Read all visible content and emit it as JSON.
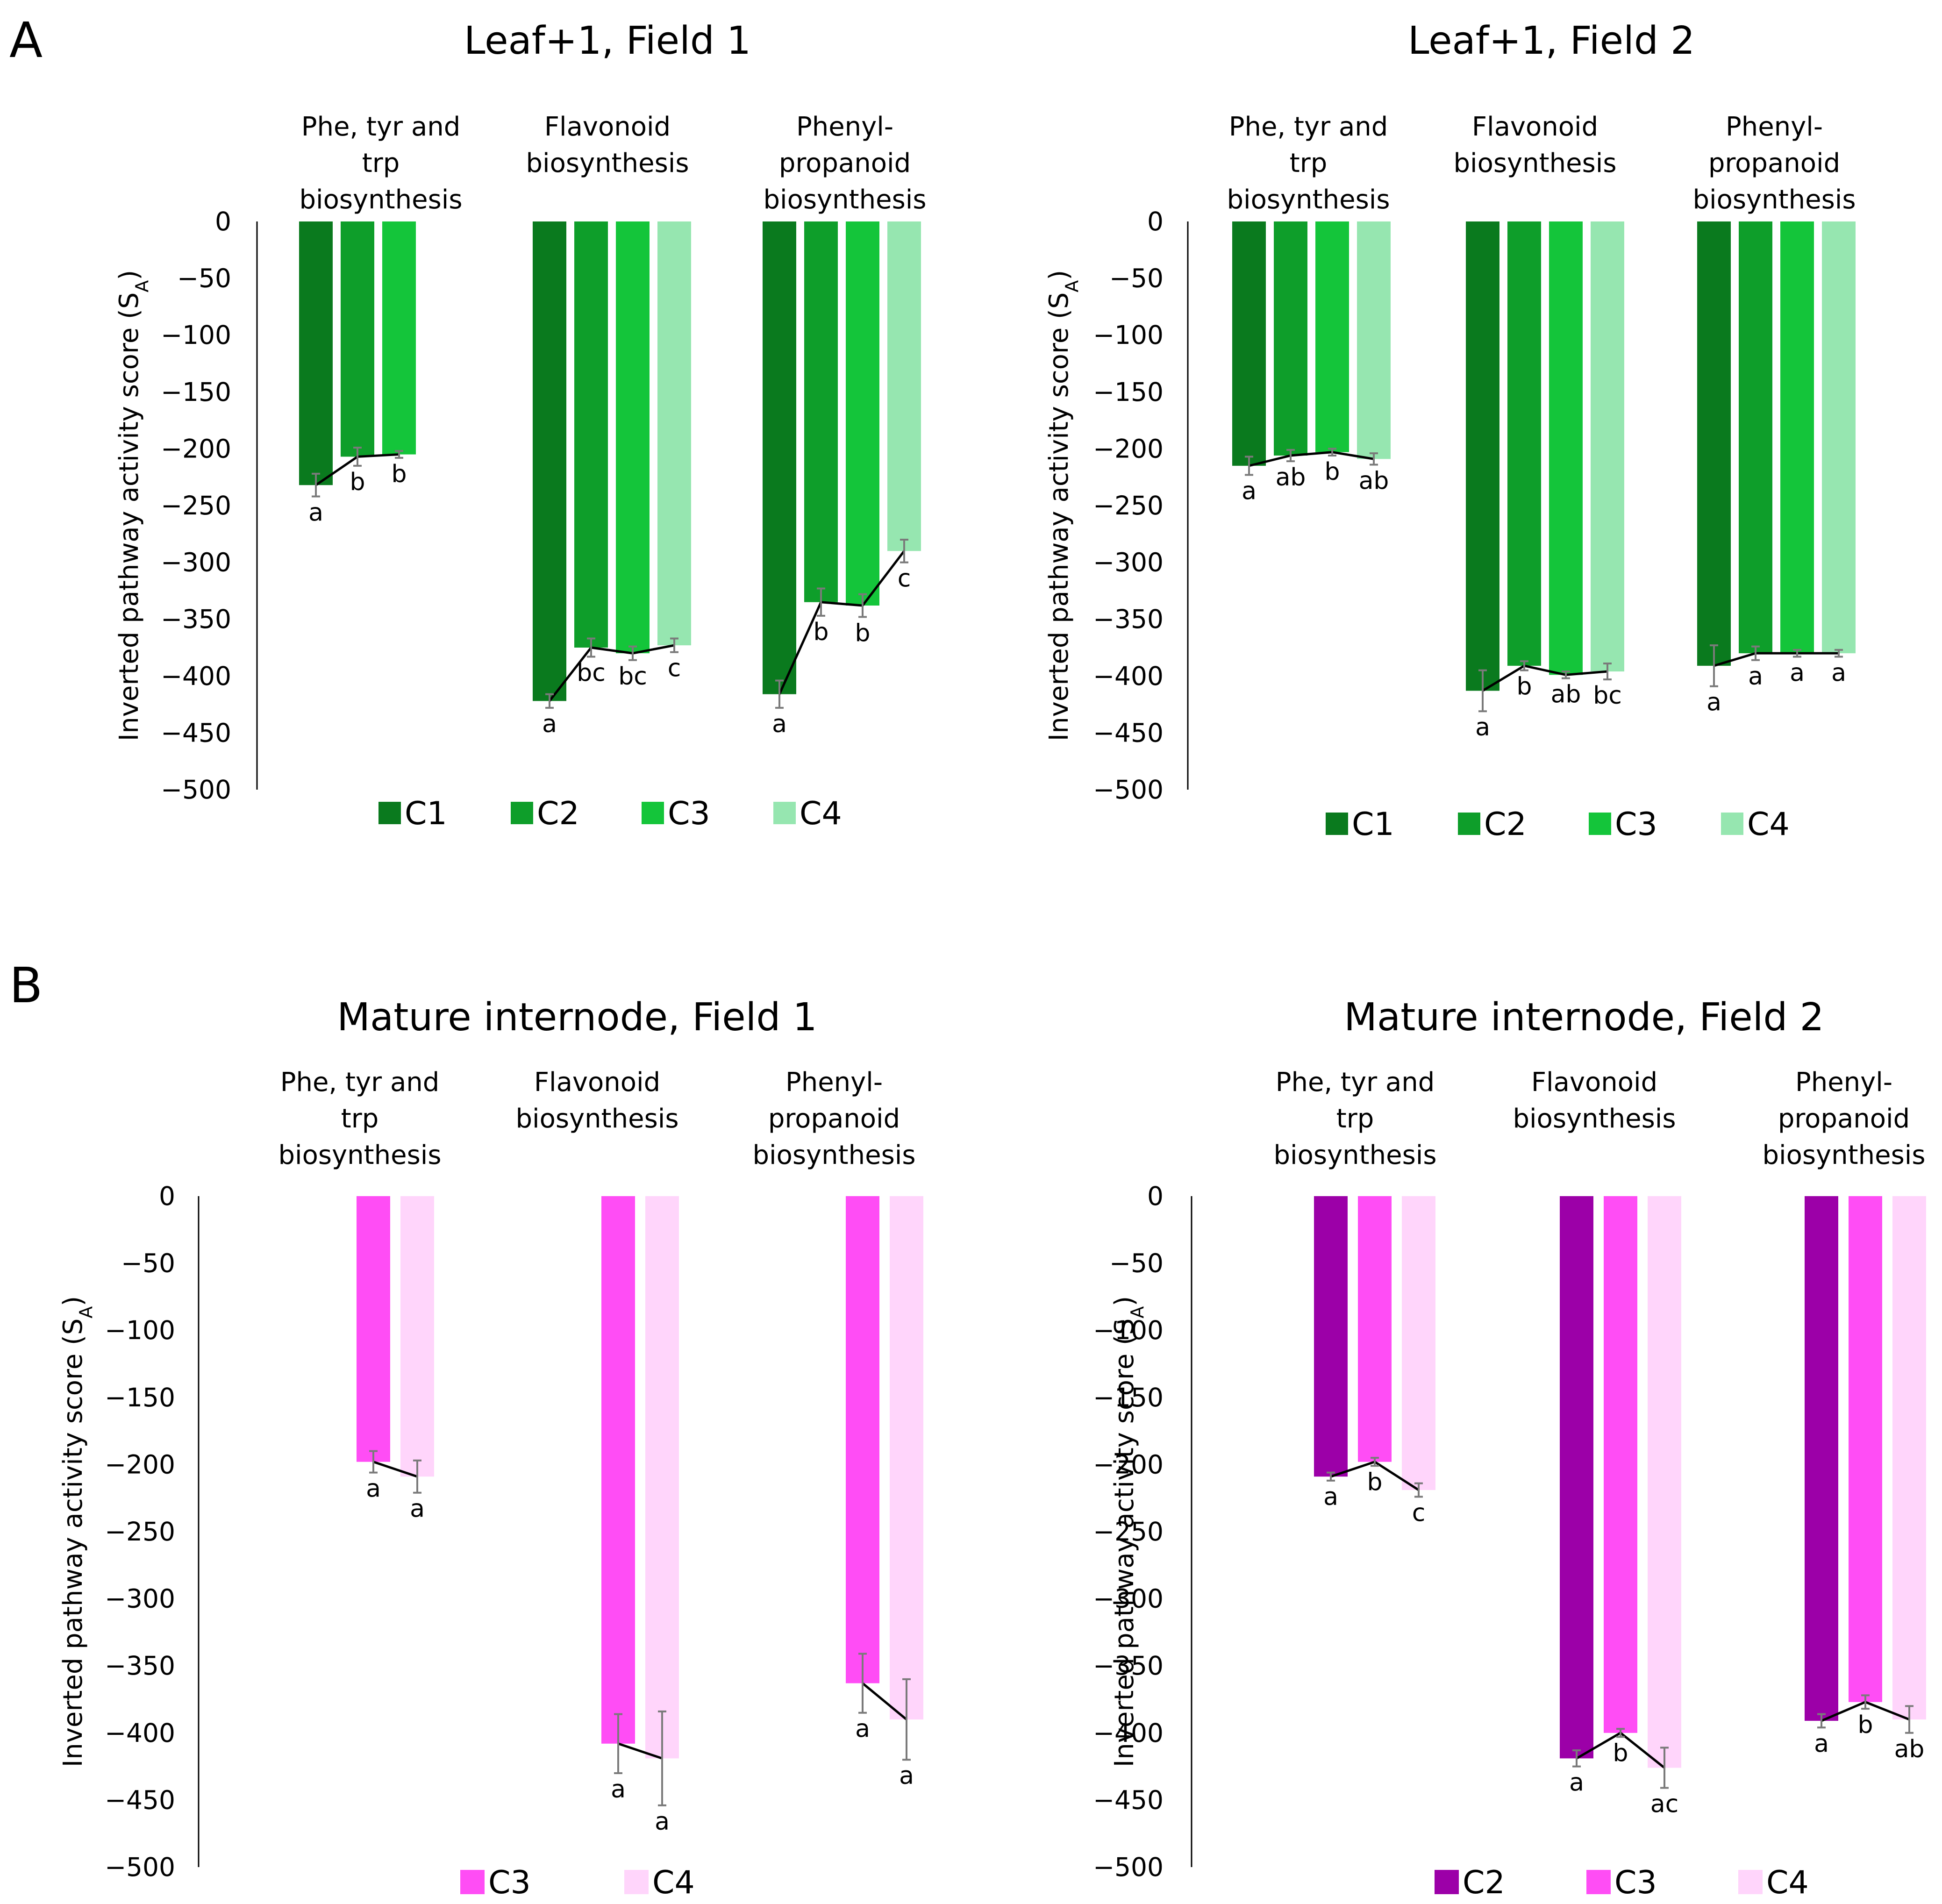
{
  "panel_letters": [
    "A",
    "B"
  ],
  "chart_data": [
    {
      "type": "bar",
      "panel": "A",
      "title": "Leaf+1, Field 1",
      "ylabel": "Inverted pathway activity score (S",
      "ylabel_sub": "A",
      "ylabel_close": ")",
      "ylim": [
        -500,
        0
      ],
      "yticks": [
        0,
        -50,
        -100,
        -150,
        -200,
        -250,
        -300,
        -350,
        -400,
        -450,
        -500
      ],
      "ytick_labels": [
        "0",
        "-50",
        "-100",
        "-150",
        "-200",
        "-250",
        "-300",
        "-350",
        "-400",
        "-450",
        "-500"
      ],
      "legend": [
        "C1",
        "C2",
        "C3",
        "C4"
      ],
      "colors": {
        "C1": "#0a7a1e",
        "C2": "#0e9e2a",
        "C3": "#14c53a",
        "C4": "#96e6b0"
      },
      "groups": [
        {
          "label": [
            "Phe, tyr and",
            "trp",
            "biosynthesis"
          ],
          "series": [
            "C1",
            "C2",
            "C3"
          ],
          "values": [
            -232,
            -207,
            -205
          ],
          "errors": [
            10,
            8,
            3
          ],
          "sig": [
            "a",
            "b",
            "b"
          ]
        },
        {
          "label": [
            "Flavonoid",
            "biosynthesis"
          ],
          "series": [
            "C1",
            "C2",
            "C3",
            "C4"
          ],
          "values": [
            -422,
            -375,
            -380,
            -373
          ],
          "errors": [
            6,
            8,
            6,
            6
          ],
          "sig": [
            "a",
            "bc",
            "bc",
            "c"
          ]
        },
        {
          "label": [
            "Phenyl-",
            "propanoid",
            "biosynthesis"
          ],
          "series": [
            "C1",
            "C2",
            "C3",
            "C4"
          ],
          "values": [
            -416,
            -335,
            -338,
            -290
          ],
          "errors": [
            12,
            12,
            10,
            10
          ],
          "sig": [
            "a",
            "b",
            "b",
            "c"
          ]
        }
      ]
    },
    {
      "type": "bar",
      "panel": "A",
      "title": "Leaf+1, Field 2",
      "ylabel": "Inverted pathway activity score (S",
      "ylabel_sub": "A",
      "ylabel_close": ")",
      "ylim": [
        -500,
        0
      ],
      "yticks": [
        0,
        -50,
        -100,
        -150,
        -200,
        -250,
        -300,
        -350,
        -400,
        -450,
        -500
      ],
      "ytick_labels": [
        "0",
        "-50",
        "-100",
        "-150",
        "-200",
        "-250",
        "-300",
        "-350",
        "-400",
        "-450",
        "-500"
      ],
      "legend": [
        "C1",
        "C2",
        "C3",
        "C4"
      ],
      "colors": {
        "C1": "#0a7a1e",
        "C2": "#0e9e2a",
        "C3": "#14c53a",
        "C4": "#96e6b0"
      },
      "groups": [
        {
          "label": [
            "Phe, tyr and",
            "trp",
            "biosynthesis"
          ],
          "series": [
            "C1",
            "C2",
            "C3",
            "C4"
          ],
          "values": [
            -215,
            -206,
            -203,
            -209
          ],
          "errors": [
            8,
            5,
            3,
            5
          ],
          "sig": [
            "a",
            "ab",
            "b",
            "ab"
          ]
        },
        {
          "label": [
            "Flavonoid",
            "biosynthesis"
          ],
          "series": [
            "C1",
            "C2",
            "C3",
            "C4"
          ],
          "values": [
            -413,
            -391,
            -399,
            -396
          ],
          "errors": [
            18,
            4,
            3,
            7
          ],
          "sig": [
            "a",
            "b",
            "ab",
            "bc"
          ]
        },
        {
          "label": [
            "Phenyl-",
            "propanoid",
            "biosynthesis"
          ],
          "series": [
            "C1",
            "C2",
            "C3",
            "C4"
          ],
          "values": [
            -391,
            -380,
            -380,
            -380
          ],
          "errors": [
            18,
            6,
            3,
            3
          ],
          "sig": [
            "a",
            "a",
            "a",
            "a"
          ]
        }
      ]
    },
    {
      "type": "bar",
      "panel": "B",
      "title": "Mature internode, Field 1",
      "ylabel": "Inverted pathway activity score (S",
      "ylabel_sub": "A",
      "ylabel_close": ")",
      "ylim": [
        -500,
        0
      ],
      "yticks": [
        0,
        -50,
        -100,
        -150,
        -200,
        -250,
        -300,
        -350,
        -400,
        -450,
        -500
      ],
      "ytick_labels": [
        "0",
        "-50",
        "-100",
        "-150",
        "-200",
        "-250",
        "-300",
        "-350",
        "-400",
        "-450",
        "-500"
      ],
      "legend": [
        "C3",
        "C4"
      ],
      "colors": {
        "C3": "#ff4df5",
        "C4": "#ffd5fb"
      },
      "groups": [
        {
          "label": [
            "Phe, tyr and",
            "trp",
            "biosynthesis"
          ],
          "series": [
            "C3",
            "C4"
          ],
          "values": [
            -198,
            -209
          ],
          "errors": [
            8,
            12
          ],
          "sig": [
            "a",
            "a"
          ]
        },
        {
          "label": [
            "Flavonoid",
            "biosynthesis"
          ],
          "series": [
            "C3",
            "C4"
          ],
          "values": [
            -408,
            -419
          ],
          "errors": [
            22,
            35
          ],
          "sig": [
            "a",
            "a"
          ]
        },
        {
          "label": [
            "Phenyl-",
            "propanoid",
            "biosynthesis"
          ],
          "series": [
            "C3",
            "C4"
          ],
          "values": [
            -363,
            -390
          ],
          "errors": [
            22,
            30
          ],
          "sig": [
            "a",
            "a"
          ]
        }
      ]
    },
    {
      "type": "bar",
      "panel": "B",
      "title": "Mature internode, Field 2",
      "ylabel": "Inverted pathway activity score (S",
      "ylabel_sub": "A",
      "ylabel_close": ")",
      "ylim": [
        -500,
        0
      ],
      "yticks": [
        0,
        -50,
        -100,
        -150,
        -200,
        -250,
        -300,
        -350,
        -400,
        -450,
        -500
      ],
      "ytick_labels": [
        "0",
        "-50",
        "-100",
        "-150",
        "-200",
        "-250",
        "-300",
        "-350",
        "-400",
        "-450",
        "-500"
      ],
      "legend": [
        "C2",
        "C3",
        "C4"
      ],
      "colors": {
        "C2": "#9c00a8",
        "C3": "#ff4df5",
        "C4": "#ffd5fb"
      },
      "groups": [
        {
          "label": [
            "Phe, tyr and",
            "trp",
            "biosynthesis"
          ],
          "series": [
            "C2",
            "C3",
            "C4"
          ],
          "values": [
            -209,
            -198,
            -219
          ],
          "errors": [
            3,
            3,
            5
          ],
          "sig": [
            "a",
            "b",
            "c"
          ]
        },
        {
          "label": [
            "Flavonoid",
            "biosynthesis"
          ],
          "series": [
            "C2",
            "C3",
            "C4"
          ],
          "values": [
            -419,
            -400,
            -426
          ],
          "errors": [
            6,
            3,
            15
          ],
          "sig": [
            "a",
            "b",
            "ac"
          ]
        },
        {
          "label": [
            "Phenyl-",
            "propanoid",
            "biosynthesis"
          ],
          "series": [
            "C2",
            "C3",
            "C4"
          ],
          "values": [
            -391,
            -377,
            -390
          ],
          "errors": [
            5,
            5,
            10
          ],
          "sig": [
            "a",
            "b",
            "ab"
          ]
        }
      ]
    }
  ]
}
